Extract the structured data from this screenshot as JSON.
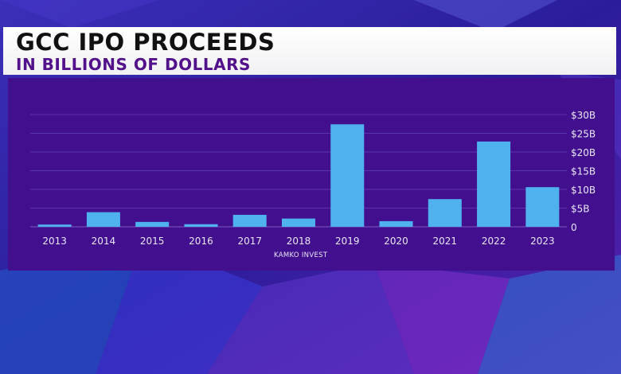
{
  "header": {
    "title": "GCC IPO PROCEEDS",
    "subtitle": "IN BILLIONS OF DOLLARS"
  },
  "source": "KAMKO INVEST",
  "colors": {
    "bar": "#4fb2ee",
    "panel": "#42108f",
    "text": "#e8e6f5",
    "title": "#111111",
    "subtitle": "#52108a"
  },
  "chart_data": {
    "type": "bar",
    "title": "GCC IPO PROCEEDS",
    "subtitle": "IN BILLIONS OF DOLLARS",
    "categories": [
      "2013",
      "2014",
      "2015",
      "2016",
      "2017",
      "2018",
      "2019",
      "2020",
      "2021",
      "2022",
      "2023"
    ],
    "values": [
      0.6,
      3.9,
      1.3,
      0.7,
      3.2,
      2.2,
      27.4,
      1.5,
      7.4,
      22.8,
      10.6
    ],
    "ylim": [
      0,
      30
    ],
    "yticks": [
      0,
      5,
      10,
      15,
      20,
      25,
      30
    ],
    "ytick_labels": [
      "0",
      "$5B",
      "$10B",
      "$15B",
      "$20B",
      "$25B",
      "$30B"
    ],
    "y_axis_position": "right",
    "grid": true,
    "legend": false,
    "source_label": "KAMKO INVEST"
  }
}
